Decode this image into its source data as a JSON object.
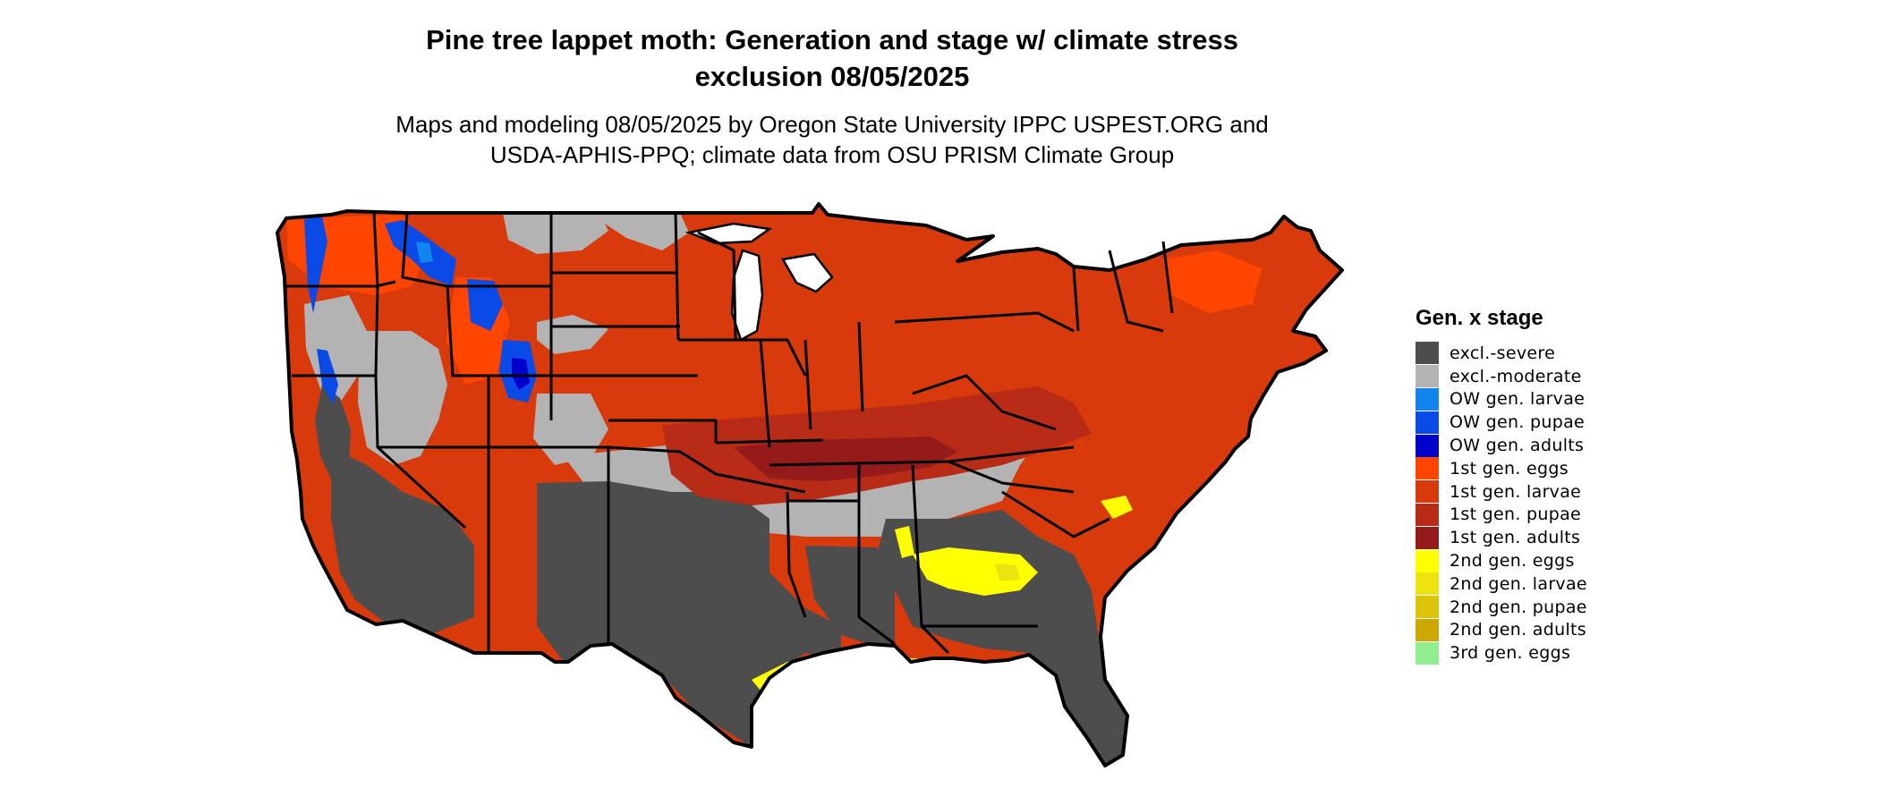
{
  "title_line1": "Pine tree lappet moth: Generation and stage w/ climate stress",
  "title_line2": "exclusion 08/05/2025",
  "subtitle_line1": "Maps and modeling 08/05/2025 by Oregon State University IPPC USPEST.ORG and",
  "subtitle_line2": "USDA-APHIS-PPQ; climate data from OSU PRISM Climate Group",
  "legend": {
    "title": "Gen. x stage",
    "items": [
      {
        "label": "excl.-severe",
        "color": "#4d4d4d"
      },
      {
        "label": "excl.-moderate",
        "color": "#b3b3b3"
      },
      {
        "label": "OW gen. larvae",
        "color": "#1185ee"
      },
      {
        "label": "OW gen. pupae",
        "color": "#0a4be8"
      },
      {
        "label": "OW gen. adults",
        "color": "#0000cd"
      },
      {
        "label": "1st gen. eggs",
        "color": "#ff4500"
      },
      {
        "label": "1st gen. larvae",
        "color": "#d93a0c"
      },
      {
        "label": "1st gen. pupae",
        "color": "#b82c17"
      },
      {
        "label": "1st gen. adults",
        "color": "#951a1a"
      },
      {
        "label": "2nd gen. eggs",
        "color": "#ffff00"
      },
      {
        "label": "2nd gen. larvae",
        "color": "#ede310"
      },
      {
        "label": "2nd gen. pupae",
        "color": "#dbc40a"
      },
      {
        "label": "2nd gen. adults",
        "color": "#cca800"
      },
      {
        "label": "3rd gen. eggs",
        "color": "#90ee90"
      }
    ]
  }
}
